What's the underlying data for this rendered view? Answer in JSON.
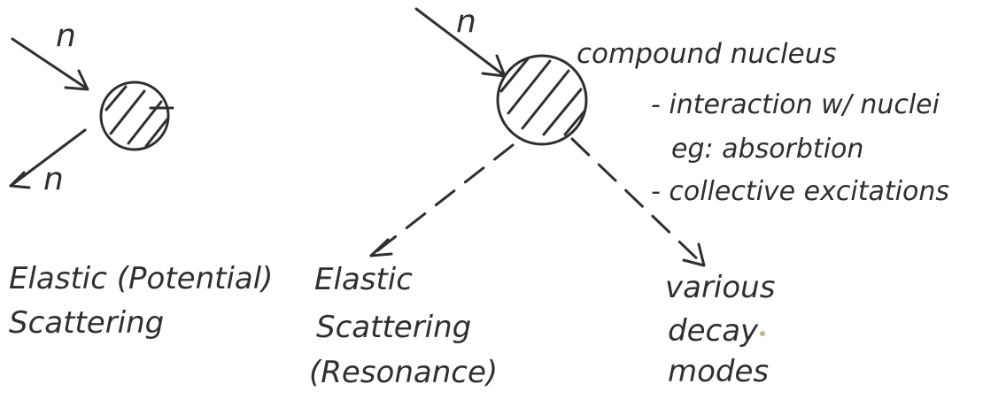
{
  "left_diagram": {
    "incoming_label": "n",
    "outgoing_label": "n",
    "caption_lines": [
      "Elastic (Potential)",
      "Scattering"
    ]
  },
  "right_diagram": {
    "incoming_label": "n",
    "nucleus_title": "compound nucleus",
    "notes": [
      "- interaction w/ nuclei",
      "eg: absorbtion",
      "- collective excitations"
    ],
    "branch_left_lines": [
      "Elastic",
      "Scattering",
      "(Resonance)"
    ],
    "branch_right_lines": [
      "various",
      "decay",
      "modes"
    ]
  }
}
